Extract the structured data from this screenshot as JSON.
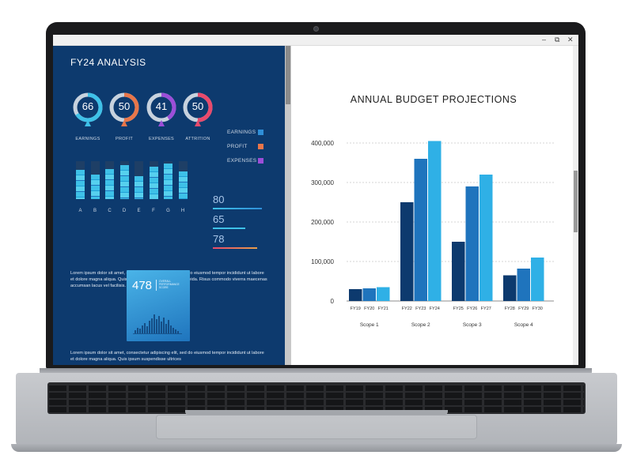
{
  "window": {
    "controls": {
      "minimize": "–",
      "restore": "⧉",
      "close": "✕"
    }
  },
  "infographic": {
    "title": "FY24 ANALYSIS",
    "gauges": [
      {
        "value": "66",
        "label": "EARNINGS",
        "color": "#3ec1e8"
      },
      {
        "value": "50",
        "label": "PROFIT",
        "color": "#e8764a"
      },
      {
        "value": "41",
        "label": "EXPENSES",
        "color": "#9b4ed8"
      },
      {
        "value": "50",
        "label": "ATTRITION",
        "color": "#e84a6c"
      }
    ],
    "legend": [
      {
        "label": "EARNINGS",
        "color": "#2f8fd8"
      },
      {
        "label": "PROFIT",
        "color": "#e8764a"
      },
      {
        "label": "EXPENSES",
        "color": "#9b4ed8"
      }
    ],
    "mini_bars": {
      "labels": [
        "A",
        "B",
        "C",
        "D",
        "E",
        "F",
        "G",
        "H"
      ],
      "fill": [
        0.78,
        0.65,
        0.8,
        0.9,
        0.6,
        0.85,
        0.93,
        0.72
      ]
    },
    "stats": [
      {
        "value": "80",
        "fill": 1.0,
        "color_a": "#3ec1e8",
        "color_b": "#2f8fd8"
      },
      {
        "value": "65",
        "fill": 0.66,
        "color_a": "#3ec1e8",
        "color_b": "#3ec1e8"
      },
      {
        "value": "78",
        "fill": 0.9,
        "color_a": "#e84a6c",
        "color_b": "#e8a04a"
      }
    ],
    "paragraph_1": "Lorem ipsum dolor sit amet, consectetur adipiscing elit, sed do eiusmod tempor incididunt ut labore et dolore magna aliqua. Quis ipsum suspendisse ultrices gravida. Risus commodo viverra maecenas accumsan lacus vel facilisis.",
    "card": {
      "value": "478",
      "subtitle": "OVERALL PERFORMANCE SCORE"
    },
    "paragraph_2": "Lorem ipsum dolor sit amet, consectetur adipiscing elit, sed do eiusmod tempor incididunt ut labore et dolore magna aliqua. Quis ipsum suspendisse ultrices"
  },
  "chart_data": {
    "type": "bar",
    "title": "ANNUAL BUDGET PROJECTIONS",
    "ylim": [
      0,
      400000
    ],
    "yticks": [
      "0",
      "100,000",
      "200,000",
      "300,000",
      "400,000"
    ],
    "grid": true,
    "groups": [
      {
        "name": "Scope 1",
        "categories": [
          "FY19",
          "FY20",
          "FY21"
        ],
        "values": [
          30000,
          32000,
          35000
        ]
      },
      {
        "name": "Scope 2",
        "categories": [
          "FY22",
          "FY23",
          "FY24"
        ],
        "values": [
          250000,
          360000,
          405000
        ]
      },
      {
        "name": "Scope 3",
        "categories": [
          "FY25",
          "FY26",
          "FY27"
        ],
        "values": [
          150000,
          290000,
          320000
        ]
      },
      {
        "name": "Scope 4",
        "categories": [
          "FY28",
          "FY29",
          "FY30"
        ],
        "values": [
          65000,
          82000,
          110000
        ]
      }
    ],
    "bar_colors": [
      "#0d3a6e",
      "#1f74bd",
      "#2fb0e6"
    ]
  }
}
